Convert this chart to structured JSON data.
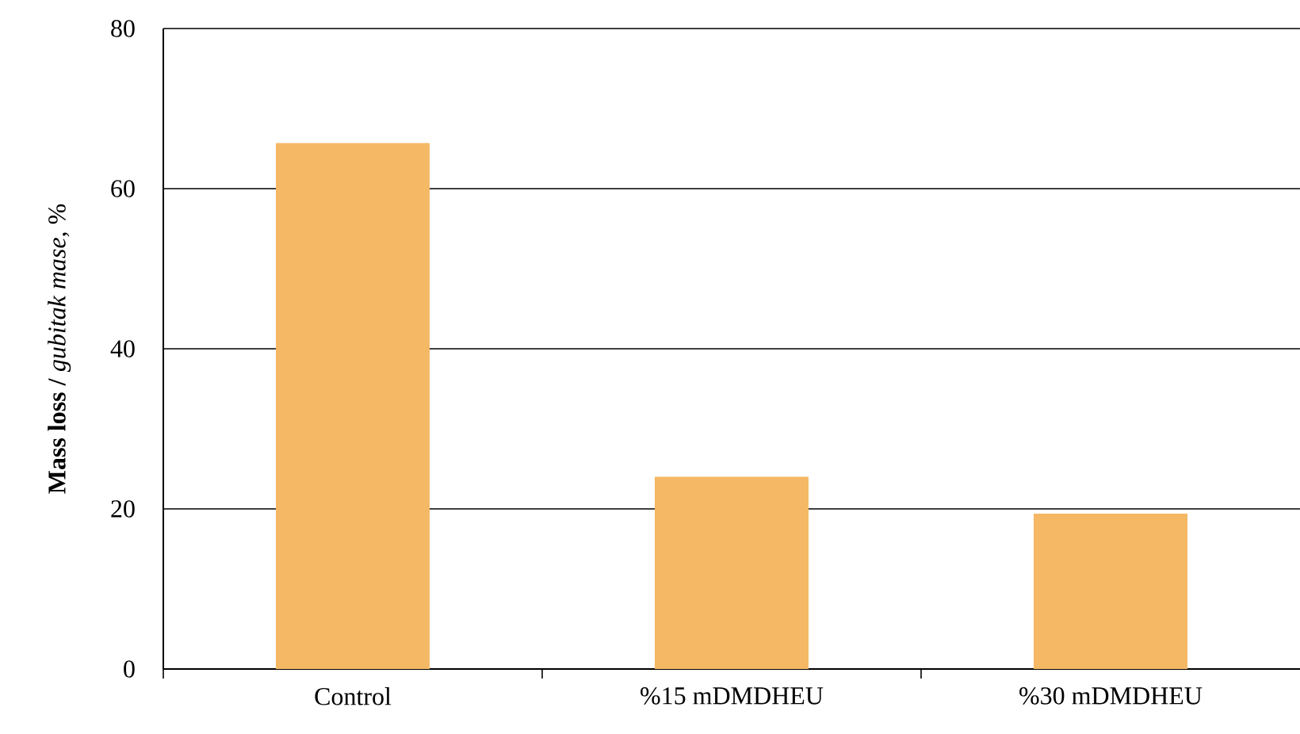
{
  "chart_data": {
    "type": "bar",
    "ylabel": "**Mass loss /** *gubitak mase*, %",
    "categories": [
      "Control",
      "%15 mDMDHEU",
      "%30 mDMDHEU"
    ],
    "values": [
      65.7,
      24.0,
      19.4
    ],
    "color": "#f5b865",
    "ylim": [
      0,
      80
    ],
    "yticks": [
      0,
      20,
      40,
      60,
      80
    ],
    "grid": "y"
  }
}
